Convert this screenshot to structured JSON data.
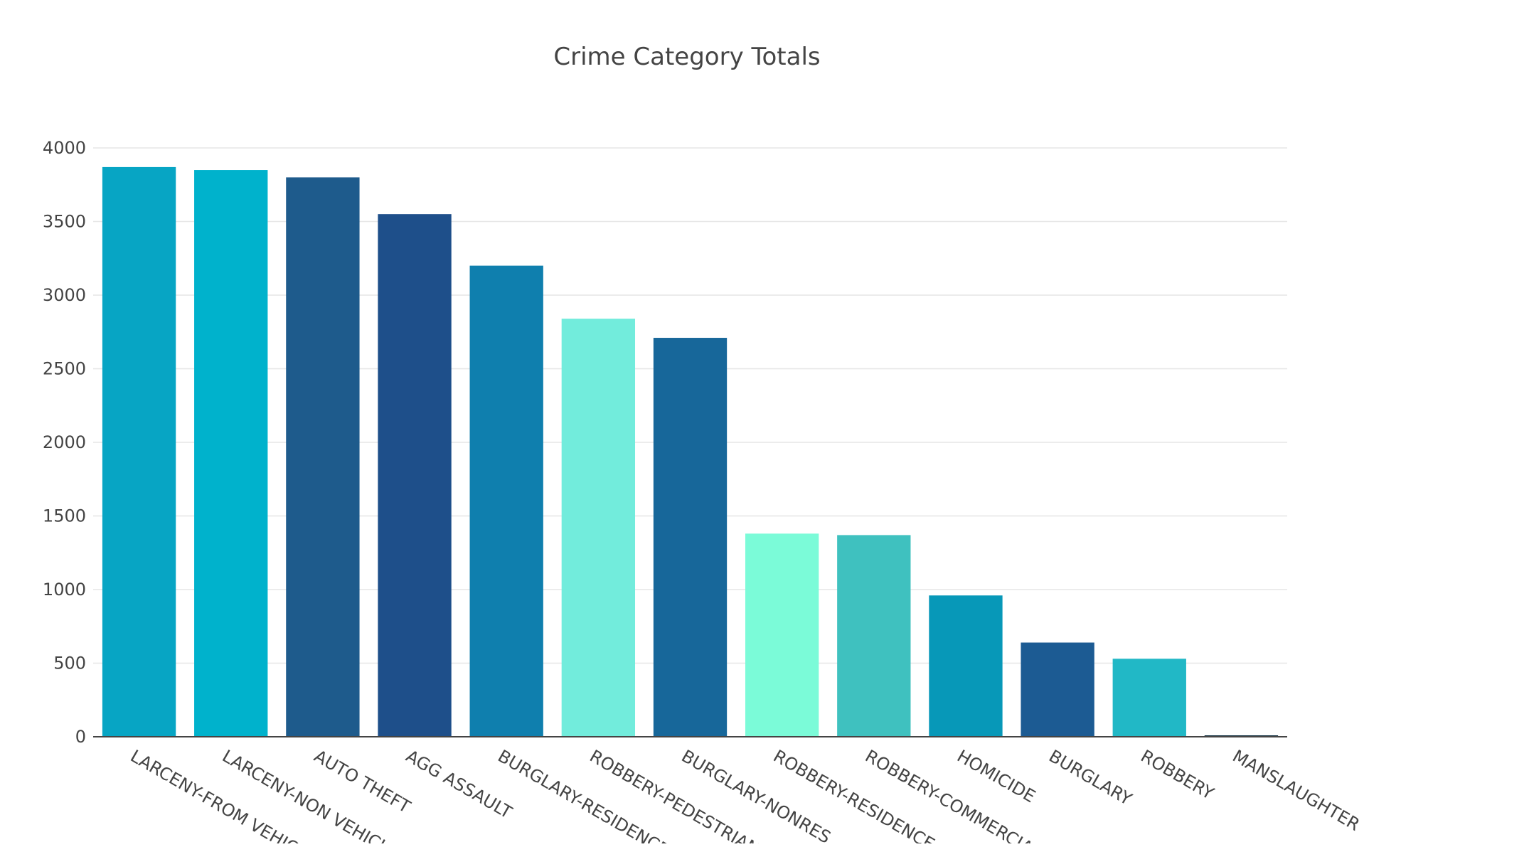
{
  "chart_data": {
    "type": "bar",
    "title": "Crime Category Totals",
    "xlabel": "",
    "ylabel": "",
    "ylim": [
      0,
      4000
    ],
    "yticks": [
      0,
      500,
      1000,
      1500,
      2000,
      2500,
      3000,
      3500,
      4000
    ],
    "ytick_labels": [
      "0",
      "500",
      "1000",
      "1500",
      "2000",
      "2500",
      "3000",
      "3500",
      "4000"
    ],
    "grid": true,
    "categories": [
      "LARCENY-FROM VEHICLE",
      "LARCENY-NON VEHICLE",
      "AUTO THEFT",
      "AGG ASSAULT",
      "BURGLARY-RESIDENCE",
      "ROBBERY-PEDESTRIAN",
      "BURGLARY-NONRES",
      "ROBBERY-RESIDENCE",
      "ROBBERY-COMMERCIAL",
      "HOMICIDE",
      "BURGLARY",
      "ROBBERY",
      "MANSLAUGHTER"
    ],
    "values": [
      3870,
      3850,
      3800,
      3550,
      3200,
      2840,
      2710,
      1380,
      1370,
      960,
      640,
      530,
      8
    ],
    "colors": [
      "#07a5c4",
      "#00b2cc",
      "#1e5b8c",
      "#1e4f8a",
      "#0f7fae",
      "#72ecdc",
      "#17679a",
      "#7bfbd8",
      "#3fc1bf",
      "#0798b8",
      "#1c5b93",
      "#21b8c6",
      "#0b2a3d"
    ]
  }
}
